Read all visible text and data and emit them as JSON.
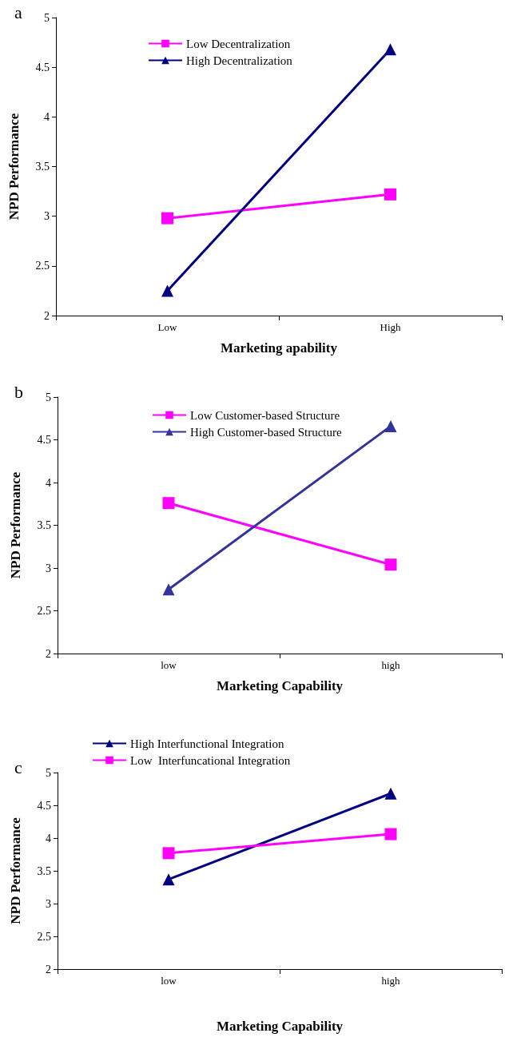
{
  "chart_data": [
    {
      "type": "line",
      "annotations": [
        "a"
      ],
      "xlabel": "Marketing apability",
      "ylabel": "NPD Performance",
      "categories": [
        "Low",
        "High"
      ],
      "ylim": [
        2,
        5
      ],
      "yticks": [
        2,
        2.5,
        3,
        3.5,
        4,
        4.5,
        5
      ],
      "grid": false,
      "legend": "top left",
      "series": [
        {
          "name": "Low Decentralization",
          "color": "#ff00ff",
          "marker": "square",
          "values": [
            2.98,
            3.22
          ]
        },
        {
          "name": "High Decentralization",
          "color": "#000080",
          "marker": "triangle",
          "values": [
            2.25,
            4.68
          ]
        }
      ]
    },
    {
      "type": "line",
      "annotations": [
        "b"
      ],
      "xlabel": "Marketing Capability",
      "ylabel": "NPD Performance",
      "categories": [
        "low",
        "high"
      ],
      "ylim": [
        2,
        5
      ],
      "yticks": [
        2,
        2.5,
        3,
        3.5,
        4,
        4.5,
        5
      ],
      "grid": false,
      "legend": "top left",
      "series": [
        {
          "name": "Low Customer-based Structure",
          "color": "#ff00ff",
          "marker": "square",
          "values": [
            3.76,
            3.04
          ]
        },
        {
          "name": "High Customer-based Structure",
          "color": "#333399",
          "marker": "triangle",
          "values": [
            2.75,
            4.66
          ]
        }
      ]
    },
    {
      "type": "line",
      "annotations": [
        "c"
      ],
      "xlabel": "Marketing Capability",
      "ylabel": "NPD Performance",
      "categories": [
        "low",
        "high"
      ],
      "ylim": [
        2,
        5
      ],
      "yticks": [
        2,
        2.5,
        3,
        3.5,
        4,
        4.5,
        5
      ],
      "grid": false,
      "legend": "top left",
      "series": [
        {
          "name": "High Interfunctional Integration",
          "color": "#000080",
          "marker": "triangle",
          "values": [
            3.37,
            4.68
          ]
        },
        {
          "name": "Low  Interfuncational Integration",
          "color": "#ff00ff",
          "marker": "square",
          "values": [
            3.77,
            4.06
          ]
        }
      ]
    }
  ]
}
